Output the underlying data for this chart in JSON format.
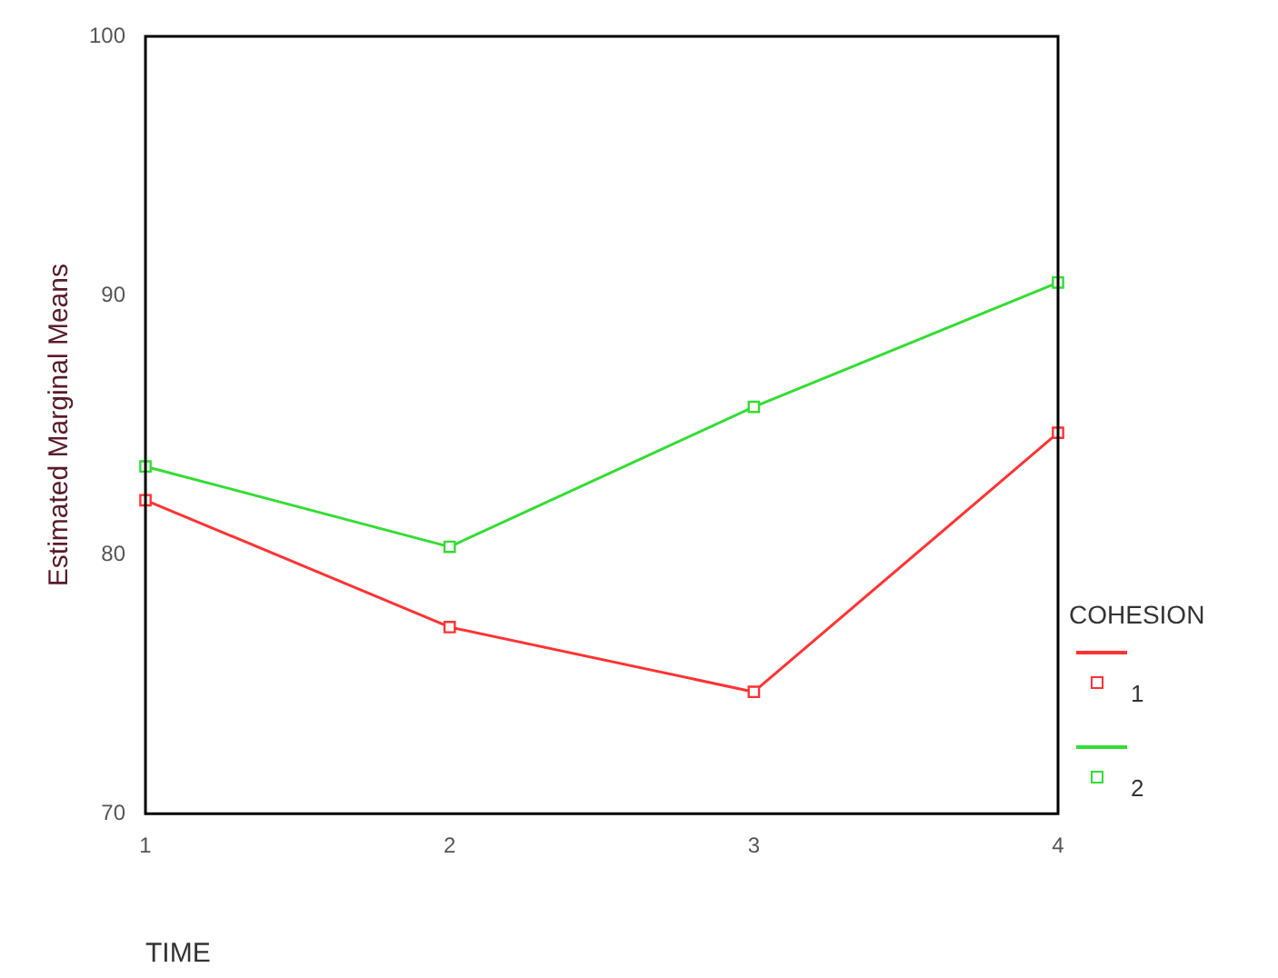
{
  "chart_data": {
    "type": "line",
    "xlabel": "TIME",
    "ylabel": "Estimated Marginal Means",
    "legend_title": "COHESION",
    "categories": [
      "1",
      "2",
      "3",
      "4"
    ],
    "series": [
      {
        "name": "1",
        "color": "#ff3333",
        "values": [
          82.1,
          77.2,
          74.7,
          84.7
        ]
      },
      {
        "name": "2",
        "color": "#33dd33",
        "values": [
          83.4,
          80.3,
          85.7,
          90.5
        ]
      }
    ],
    "ylim": [
      70,
      100
    ],
    "yticks": [
      70,
      80,
      90,
      100
    ],
    "grid": false,
    "legend": "right",
    "marker": "square",
    "line_style": "solid"
  }
}
